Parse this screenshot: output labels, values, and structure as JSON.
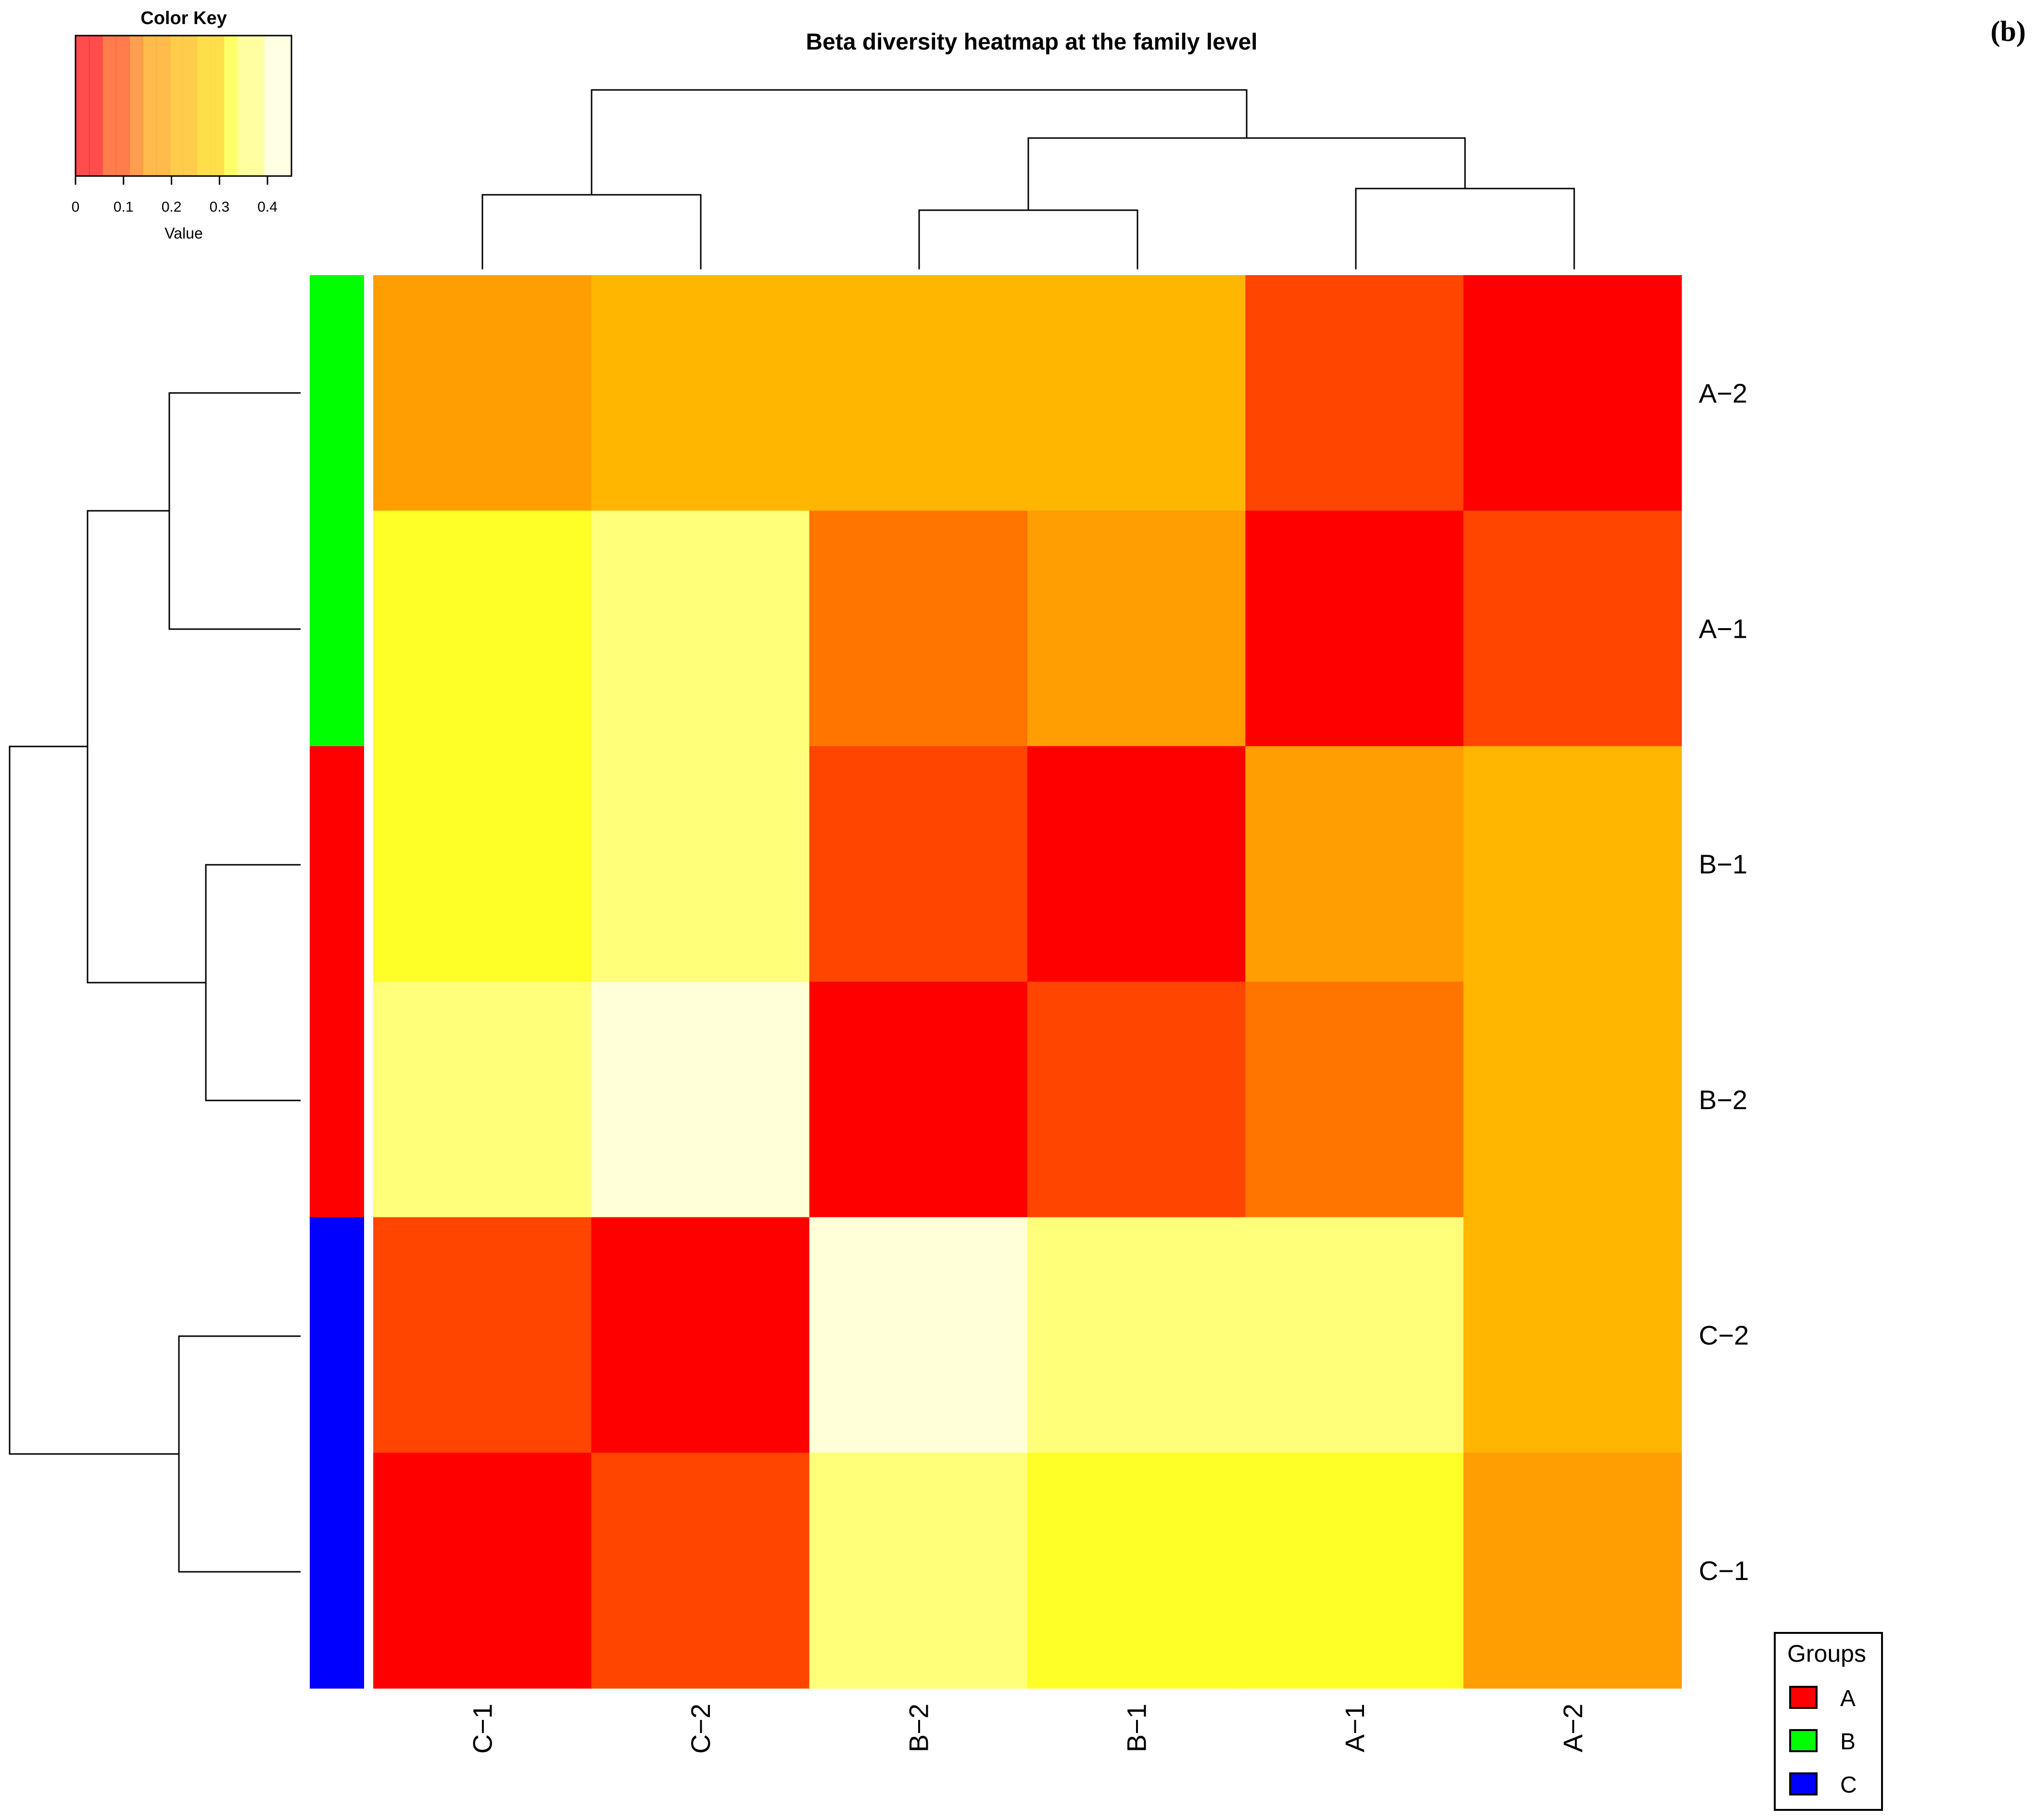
{
  "chart_data": {
    "type": "heatmap",
    "title": "Beta diversity heatmap at the family level",
    "panel_label": "(b)",
    "columns": [
      "C−1",
      "C−2",
      "B−2",
      "B−1",
      "A−1",
      "A−2"
    ],
    "rows": [
      "A−2",
      "A−1",
      "B−1",
      "B−2",
      "C−2",
      "C−1"
    ],
    "values": [
      [
        0.17,
        0.21,
        0.22,
        0.22,
        0.09,
        0.0
      ],
      [
        0.35,
        0.39,
        0.14,
        0.17,
        0.0,
        0.09
      ],
      [
        0.35,
        0.39,
        0.06,
        0.0,
        0.17,
        0.21
      ],
      [
        0.39,
        0.43,
        0.0,
        0.06,
        0.14,
        0.21
      ],
      [
        0.09,
        0.0,
        0.43,
        0.39,
        0.39,
        0.21
      ],
      [
        0.0,
        0.09,
        0.39,
        0.35,
        0.35,
        0.17
      ]
    ],
    "row_groups": [
      "B",
      "B",
      "A",
      "A",
      "C",
      "C"
    ],
    "color_key": {
      "title": "Color Key",
      "xlabel": "Value",
      "ticks": [
        "0",
        "0.1",
        "0.2",
        "0.3",
        "0.4"
      ],
      "range": [
        0,
        0.45
      ]
    },
    "legend": {
      "title": "Groups",
      "placement": "bottom-right",
      "entries": [
        {
          "label": "A",
          "color": "#ff0000"
        },
        {
          "label": "B",
          "color": "#00ff00"
        },
        {
          "label": "C",
          "color": "#0000ff"
        }
      ]
    },
    "palette": [
      "#ff0000",
      "#ff4500",
      "#ff7500",
      "#ff9e00",
      "#ffb600",
      "#ffd000",
      "#ffff28",
      "#ffff7a",
      "#ffffd8"
    ]
  }
}
